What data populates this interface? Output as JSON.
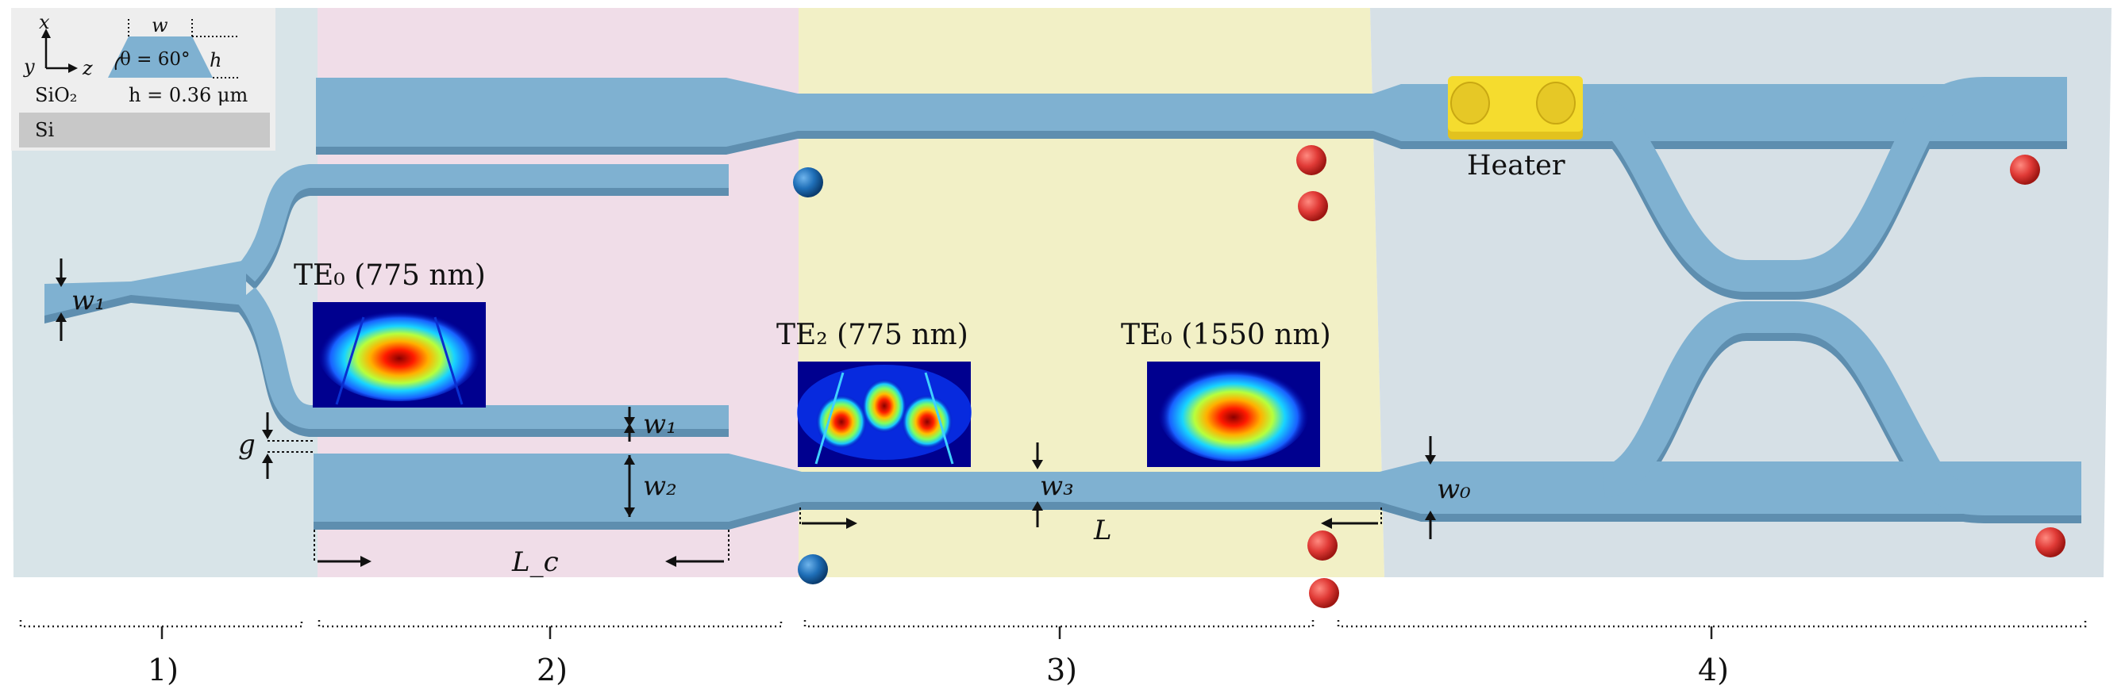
{
  "cross_section": {
    "axis_x": "x",
    "axis_y": "y",
    "axis_z": "z",
    "width_label": "w",
    "angle_label": "θ = 60°",
    "height_label": "h",
    "cladding": "SiO₂",
    "height_value": "h = 0.36 μm",
    "substrate": "Si"
  },
  "mode_labels": {
    "te0_775": "TE₀ (775 nm)",
    "te2_775": "TE₂ (775 nm)",
    "te0_1550": "TE₀ (1550 nm)"
  },
  "dimension_labels": {
    "w1_input": "w₁",
    "w1_coupler": "w₁",
    "w2": "w₂",
    "w3": "w₃",
    "w0": "w₀",
    "gap": "g",
    "coupling_length": "L_c",
    "taper_length": "L"
  },
  "heater_label": "Heater",
  "sections": [
    "1)",
    "2)",
    "3)",
    "4)"
  ],
  "colors": {
    "waveguide": "#7fb1d1",
    "waveguide_side": "#5e8eaf",
    "region_1": "#d8e4e8",
    "region_2": "#f0dde8",
    "region_3": "#f2f0c6",
    "region_4": "#d6e0e6",
    "heater": "#f5dc2e",
    "red_marker": "#e03a36",
    "blue_marker": "#1f6fb8"
  }
}
